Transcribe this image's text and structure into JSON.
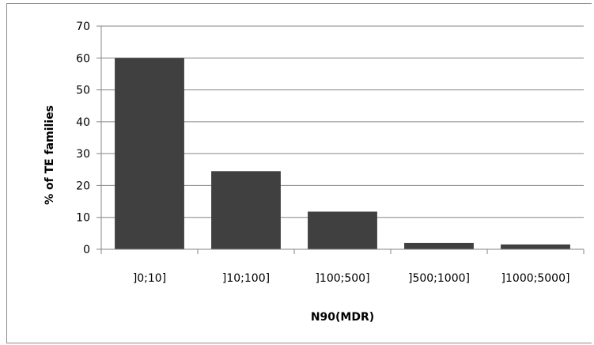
{
  "chart_data": {
    "type": "bar",
    "categories": [
      "]0;10]",
      "]10;100]",
      "]100;500]",
      "]500;1000]",
      "]1000;5000]"
    ],
    "values": [
      60,
      24.5,
      11.8,
      2.0,
      1.5
    ],
    "xlabel": "N90(MDR)",
    "ylabel": "% of TE families",
    "ylim": [
      0,
      70
    ],
    "yticks": [
      0,
      10,
      20,
      30,
      40,
      50,
      60,
      70
    ],
    "grid": true,
    "legend": "none",
    "bar_color": "#404040",
    "grid_color": "#868686"
  }
}
